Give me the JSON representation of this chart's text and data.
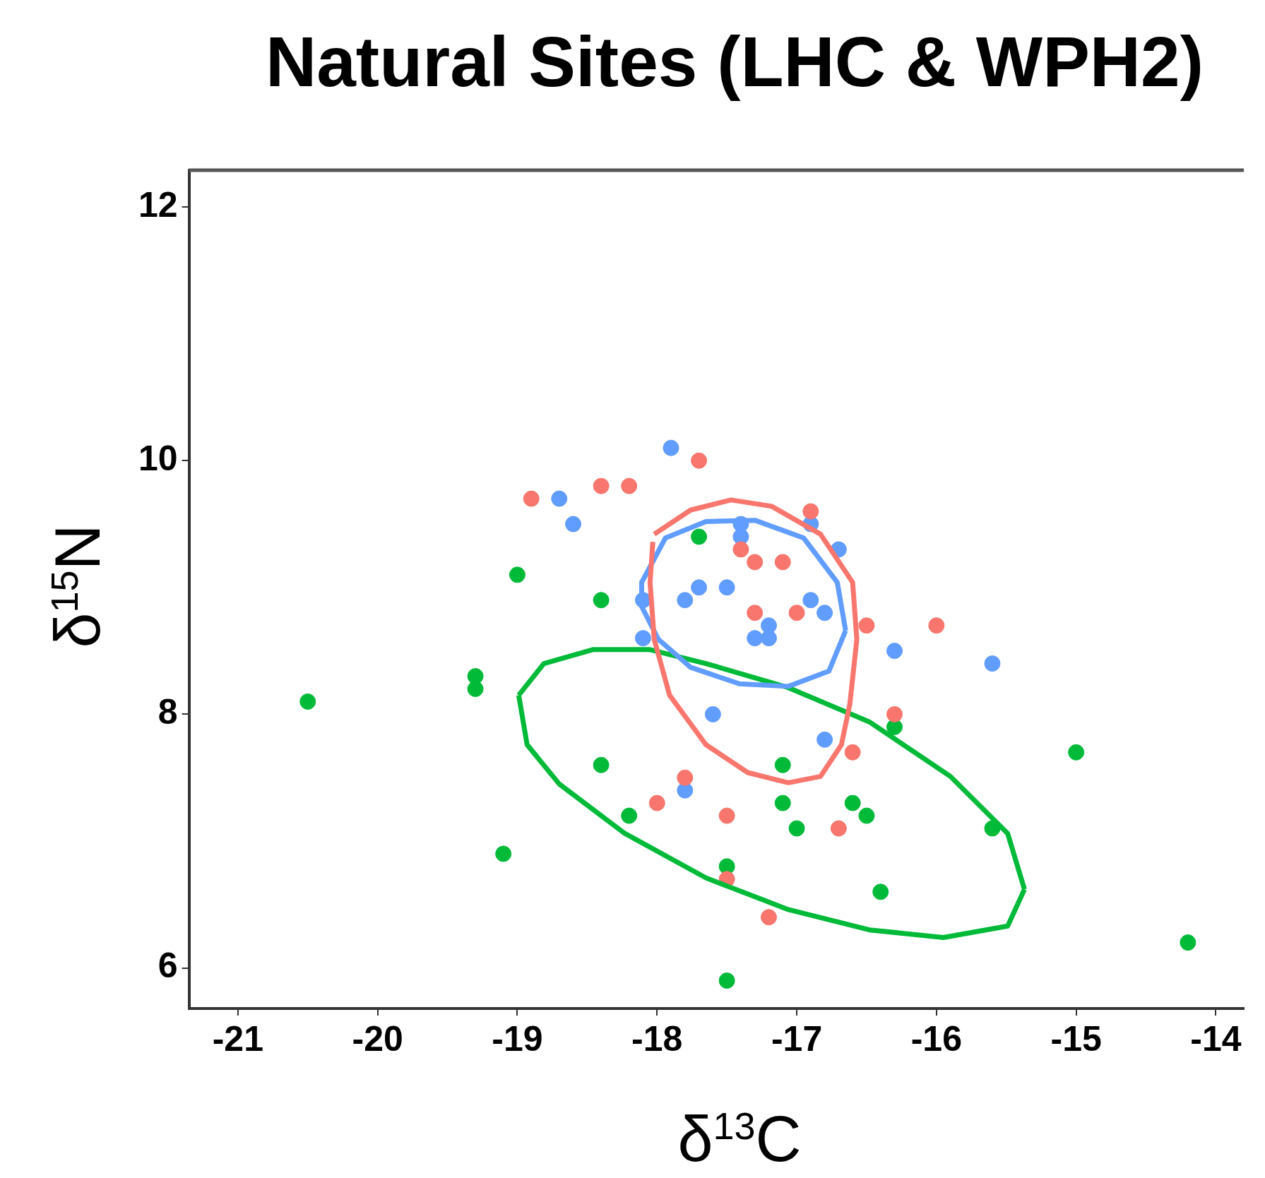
{
  "chart_data": {
    "type": "scatter",
    "title": "Natural Sites (LHC & WPH2)",
    "xlabel": "δ$^{13}$C",
    "ylabel": "δ$^{15}$N",
    "xlim": [
      -21.35,
      -13.8
    ],
    "xticks": [
      -21,
      -20,
      -19,
      -18,
      -17,
      -16,
      -15,
      -14
    ],
    "ylim": [
      5.68,
      12.29
    ],
    "yticks": [
      6,
      8,
      10,
      12
    ],
    "grid": false,
    "legend": false,
    "marker": "circle",
    "series": [
      {
        "type": "scatter",
        "color": "#f8766d",
        "x": [
          -18.9,
          -18.4,
          -18.2,
          -17.7,
          -16.9,
          -17.4,
          -17.3,
          -17.1,
          -17.3,
          -17.0,
          -16.5,
          -16.0,
          -16.3,
          -16.6,
          -17.8,
          -18.0,
          -17.5,
          -16.7,
          -17.2,
          -17.5
        ],
        "values": [
          9.7,
          9.8,
          9.8,
          10.0,
          9.6,
          9.3,
          9.2,
          9.2,
          8.8,
          8.8,
          8.7,
          8.7,
          8.0,
          7.7,
          7.5,
          7.3,
          7.2,
          7.1,
          6.4,
          6.7
        ]
      },
      {
        "type": "scatter",
        "color": "#619cff",
        "x": [
          -17.9,
          -18.7,
          -18.6,
          -17.4,
          -17.4,
          -16.9,
          -16.7,
          -17.7,
          -17.8,
          -17.5,
          -18.1,
          -16.9,
          -16.8,
          -17.2,
          -17.3,
          -17.2,
          -18.1,
          -16.3,
          -15.6,
          -17.6,
          -16.8,
          -17.8
        ],
        "values": [
          10.1,
          9.7,
          9.5,
          9.5,
          9.4,
          9.5,
          9.3,
          9.0,
          8.9,
          9.0,
          8.9,
          8.9,
          8.8,
          8.7,
          8.6,
          8.6,
          8.6,
          8.5,
          8.4,
          8.0,
          7.8,
          7.4
        ]
      },
      {
        "type": "scatter",
        "color": "#00ba38",
        "x": [
          -20.5,
          -19.3,
          -19.3,
          -19.0,
          -18.4,
          -17.7,
          -16.3,
          -15.0,
          -18.4,
          -17.1,
          -18.2,
          -17.1,
          -17.0,
          -16.6,
          -16.5,
          -15.6,
          -19.1,
          -17.5,
          -16.4,
          -14.2,
          -17.5
        ],
        "values": [
          8.1,
          8.3,
          8.2,
          9.1,
          8.9,
          9.4,
          7.9,
          7.7,
          7.6,
          7.6,
          7.2,
          7.3,
          7.1,
          7.3,
          7.2,
          7.1,
          6.9,
          6.8,
          6.6,
          6.2,
          5.9
        ]
      },
      {
        "type": "line",
        "marker": "none",
        "color": "#f8766d",
        "x": [
          -18.02,
          -17.76,
          -17.47,
          -17.18,
          -16.83,
          -16.6,
          -16.57,
          -16.62,
          -16.68,
          -16.83,
          -17.06,
          -17.35,
          -17.65,
          -17.91,
          -18.02,
          -18.05,
          -18.03
        ],
        "values": [
          9.42,
          9.61,
          9.69,
          9.64,
          9.42,
          9.04,
          8.59,
          8.08,
          7.76,
          7.51,
          7.46,
          7.54,
          7.76,
          8.15,
          8.59,
          9.04,
          9.36
        ]
      },
      {
        "type": "line",
        "marker": "none",
        "color": "#619cff",
        "x": [
          -18.11,
          -17.94,
          -17.65,
          -17.3,
          -16.95,
          -16.71,
          -16.65
        ],
        "values": [
          9.04,
          9.39,
          9.52,
          9.53,
          9.39,
          9.04,
          8.66
        ]
      },
      {
        "type": "line",
        "marker": "none",
        "color": "#619cff",
        "x": [
          -18.11,
          -18.11,
          -17.99,
          -17.76,
          -17.41,
          -17.06,
          -16.77,
          -16.65
        ],
        "values": [
          9.04,
          8.85,
          8.59,
          8.37,
          8.24,
          8.22,
          8.34,
          8.66
        ]
      },
      {
        "type": "line",
        "marker": "none",
        "color": "#00ba38",
        "x": [
          -18.99,
          -18.81,
          -18.46,
          -18.05,
          -17.65,
          -17.06,
          -16.48,
          -15.9,
          -15.49,
          -15.37
        ],
        "values": [
          8.15,
          8.4,
          8.51,
          8.51,
          8.4,
          8.21,
          7.94,
          7.51,
          7.06,
          6.62
        ]
      },
      {
        "type": "line",
        "marker": "none",
        "color": "#00ba38",
        "x": [
          -18.99,
          -18.93,
          -18.7,
          -18.23,
          -17.65,
          -17.06,
          -16.48,
          -15.95,
          -15.49,
          -15.37
        ],
        "values": [
          8.15,
          7.76,
          7.45,
          7.06,
          6.71,
          6.46,
          6.3,
          6.24,
          6.33,
          6.62
        ]
      }
    ]
  }
}
